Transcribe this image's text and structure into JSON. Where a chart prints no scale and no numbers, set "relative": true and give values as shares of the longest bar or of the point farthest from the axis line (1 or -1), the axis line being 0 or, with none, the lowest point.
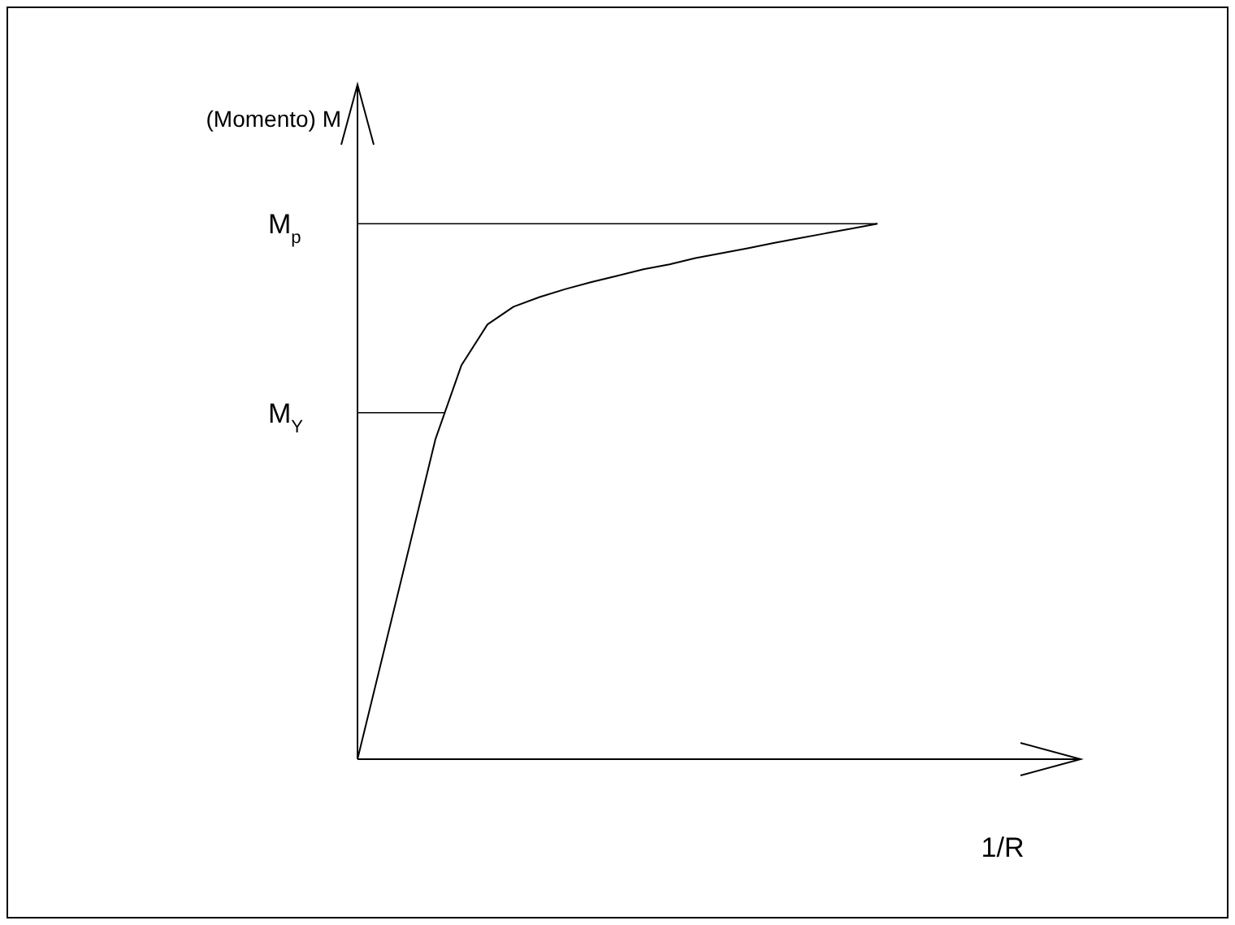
{
  "chart_data": {
    "type": "line",
    "xlabel": "1/R",
    "ylabel": "(Momento) M",
    "relative": true,
    "categories": [
      null,
      null,
      null,
      null,
      null,
      null,
      null,
      null,
      null,
      null,
      null,
      null,
      null,
      null,
      null,
      null,
      null,
      null,
      null,
      null,
      null
    ],
    "series": [
      {
        "color": "#000000",
        "values": [
          0,
          0.199,
          0.398,
          0.598,
          0.736,
          0.812,
          0.845,
          0.863,
          0.878,
          0.891,
          0.903,
          0.915,
          0.924,
          0.936,
          0.945,
          0.954,
          0.964,
          0.973,
          0.982,
          0.991,
          1
        ]
      }
    ],
    "ref_lines": [
      {
        "axis": "y",
        "value": 1,
        "label": "M$_{p}$",
        "color": "#000000"
      },
      {
        "axis": "y",
        "value": 0.647,
        "label": "M$_{Y}$",
        "color": "#000000"
      }
    ],
    "marker": "none",
    "line_style": "solid"
  }
}
